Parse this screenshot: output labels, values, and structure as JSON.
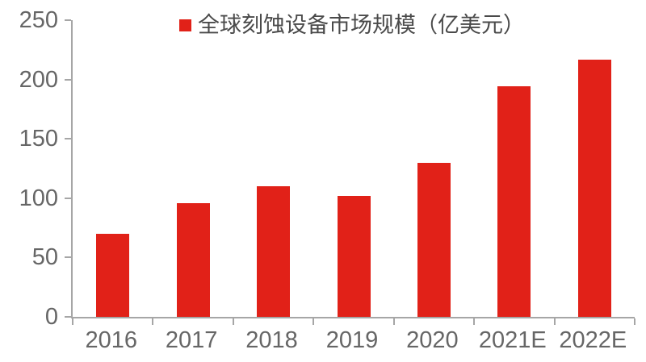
{
  "chart_data": {
    "type": "bar",
    "title": "",
    "legend_label": "全球刻蚀设备市场规模（亿美元）",
    "categories": [
      "2016",
      "2017",
      "2018",
      "2019",
      "2020",
      "2021E",
      "2022E"
    ],
    "values": [
      70,
      96,
      110,
      102,
      130,
      194,
      217
    ],
    "xlabel": "",
    "ylabel": "",
    "ylim": [
      0,
      250
    ],
    "y_ticks": [
      0,
      50,
      100,
      150,
      200,
      250
    ],
    "grid": false,
    "legend_position": "top-center",
    "colors": {
      "bar": "#e12118",
      "axis": "#a6a6a6",
      "tick_label": "#666666",
      "legend_text": "#4a4a4a",
      "background": "#ffffff"
    }
  }
}
